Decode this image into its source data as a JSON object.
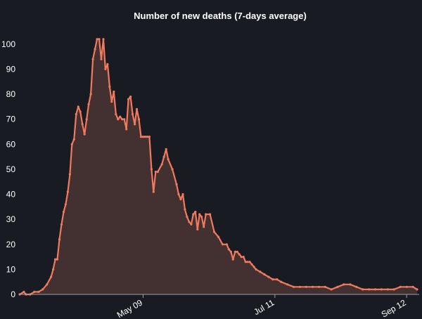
{
  "chart_data": {
    "type": "area",
    "title": "Number of new deaths (7-days average)",
    "xlabel": "",
    "ylabel": "",
    "ylim": [
      0,
      105
    ],
    "yticks": [
      0,
      10,
      20,
      30,
      40,
      50,
      60,
      70,
      80,
      90,
      100
    ],
    "xlim": [
      "2020-03-11",
      "2020-09-18"
    ],
    "xticks": [
      {
        "date": "2020-05-09",
        "label": "May 09"
      },
      {
        "date": "2020-07-11",
        "label": "Jul 11"
      },
      {
        "date": "2020-09-12",
        "label": "Sep 12"
      }
    ],
    "grid": false,
    "legend": "none",
    "colors": {
      "line": "#f07a5e",
      "fill": "#433030",
      "background": "#181c22",
      "text": "#ffffff"
    },
    "series": [
      {
        "dates": [
          "2020-03-11",
          "2020-03-13",
          "2020-03-14",
          "2020-03-16",
          "2020-03-18",
          "2020-03-20",
          "2020-03-22",
          "2020-03-24",
          "2020-03-26",
          "2020-03-27",
          "2020-03-28",
          "2020-03-29",
          "2020-03-30",
          "2020-03-31",
          "2020-04-01",
          "2020-04-02",
          "2020-04-03",
          "2020-04-04",
          "2020-04-05",
          "2020-04-06",
          "2020-04-07",
          "2020-04-08",
          "2020-04-09",
          "2020-04-10",
          "2020-04-11",
          "2020-04-12",
          "2020-04-13",
          "2020-04-14",
          "2020-04-15",
          "2020-04-16",
          "2020-04-17",
          "2020-04-18",
          "2020-04-19",
          "2020-04-20",
          "2020-04-21",
          "2020-04-22",
          "2020-04-23",
          "2020-04-24",
          "2020-04-25",
          "2020-04-26",
          "2020-04-27",
          "2020-04-28",
          "2020-04-29",
          "2020-04-30",
          "2020-05-01",
          "2020-05-02",
          "2020-05-03",
          "2020-05-04",
          "2020-05-05",
          "2020-05-06",
          "2020-05-07",
          "2020-05-08",
          "2020-05-09",
          "2020-05-10",
          "2020-05-11",
          "2020-05-12",
          "2020-05-13",
          "2020-05-14",
          "2020-05-15",
          "2020-05-16",
          "2020-05-18",
          "2020-05-19",
          "2020-05-20",
          "2020-05-21",
          "2020-05-23",
          "2020-05-25",
          "2020-05-26",
          "2020-05-27",
          "2020-05-28",
          "2020-05-29",
          "2020-05-30",
          "2020-05-31",
          "2020-06-01",
          "2020-06-02",
          "2020-06-03",
          "2020-06-04",
          "2020-06-05",
          "2020-06-06",
          "2020-06-07",
          "2020-06-08",
          "2020-06-10",
          "2020-06-12",
          "2020-06-14",
          "2020-06-16",
          "2020-06-18",
          "2020-06-19",
          "2020-06-20",
          "2020-06-21",
          "2020-06-22",
          "2020-06-23",
          "2020-06-24",
          "2020-06-25",
          "2020-06-26",
          "2020-06-27",
          "2020-06-28",
          "2020-06-29",
          "2020-06-30",
          "2020-07-01",
          "2020-07-02",
          "2020-07-04",
          "2020-07-06",
          "2020-07-08",
          "2020-07-10",
          "2020-07-12",
          "2020-07-14",
          "2020-07-17",
          "2020-07-20",
          "2020-07-23",
          "2020-07-26",
          "2020-07-29",
          "2020-08-01",
          "2020-08-04",
          "2020-08-07",
          "2020-08-10",
          "2020-08-13",
          "2020-08-16",
          "2020-08-19",
          "2020-08-22",
          "2020-08-25",
          "2020-08-28",
          "2020-08-31",
          "2020-09-03",
          "2020-09-06",
          "2020-09-09",
          "2020-09-12",
          "2020-09-15",
          "2020-09-17"
        ],
        "values": [
          0,
          1,
          0,
          0,
          1,
          1,
          2,
          4,
          7,
          10,
          14,
          14,
          22,
          28,
          33,
          36,
          41,
          48,
          60,
          62,
          72,
          75,
          73,
          68,
          64,
          70,
          76,
          80,
          94,
          98,
          102,
          102,
          94,
          102,
          90,
          92,
          83,
          77,
          81,
          72,
          70,
          71,
          70,
          70,
          66,
          78,
          79,
          72,
          68,
          74,
          70,
          63,
          63,
          63,
          63,
          63,
          50,
          41,
          49,
          49,
          52,
          55,
          58,
          54,
          50,
          44,
          40,
          38,
          40,
          34,
          31,
          29,
          28,
          32,
          33,
          26,
          32,
          31,
          27,
          32,
          32,
          25,
          23,
          20,
          20,
          18,
          17,
          14,
          17,
          17,
          16,
          15,
          15,
          13,
          13,
          13,
          12,
          11,
          10,
          9,
          8,
          7,
          6,
          6,
          5,
          4,
          3,
          3,
          3,
          3,
          3,
          3,
          2,
          3,
          4,
          4,
          3,
          2,
          2,
          2,
          2,
          2,
          2,
          3,
          3,
          3,
          2
        ]
      }
    ]
  }
}
